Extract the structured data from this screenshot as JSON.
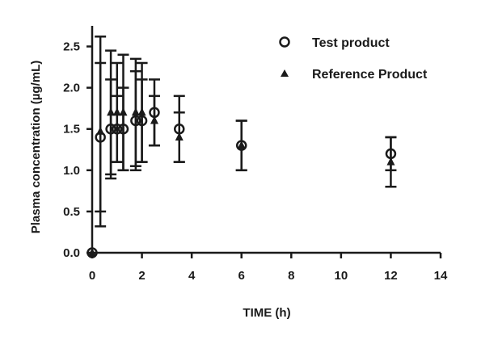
{
  "chart_data": {
    "type": "scatter",
    "xlabel": "TIME (h)",
    "ylabel": "Plasma concentration  (µg/mL)",
    "xlim": [
      0,
      14
    ],
    "ylim": [
      0,
      2.75
    ],
    "xticks": [
      "0",
      "2",
      "4",
      "6",
      "8",
      "10",
      "12",
      "14"
    ],
    "yticks": [
      "0.0",
      "0.5",
      "1.0",
      "1.5",
      "2.0",
      "2.5"
    ],
    "grid": false,
    "legend_position": "top-right",
    "series": [
      {
        "name": "Test product",
        "marker": "circle",
        "points": [
          {
            "x": 0,
            "y": 0,
            "err": 0
          },
          {
            "x": 0.33,
            "y": 1.4,
            "err": 0.9
          },
          {
            "x": 0.75,
            "y": 1.5,
            "err": 0.6
          },
          {
            "x": 1.0,
            "y": 1.5,
            "err": 0.4
          },
          {
            "x": 1.25,
            "y": 1.5,
            "err": 0.5
          },
          {
            "x": 1.75,
            "y": 1.6,
            "err": 0.6
          },
          {
            "x": 2.0,
            "y": 1.6,
            "err": 0.5
          },
          {
            "x": 2.5,
            "y": 1.7,
            "err": 0.4
          },
          {
            "x": 3.5,
            "y": 1.5,
            "err": 0.4
          },
          {
            "x": 6,
            "y": 1.3,
            "err": 0.3
          },
          {
            "x": 12,
            "y": 1.2,
            "err": 0.2
          }
        ]
      },
      {
        "name": "Reference Product",
        "marker": "triangle",
        "points": [
          {
            "x": 0,
            "y": 0,
            "err": 0
          },
          {
            "x": 0.33,
            "y": 1.47,
            "err": 1.15
          },
          {
            "x": 0.75,
            "y": 1.7,
            "err": 0.75
          },
          {
            "x": 1.0,
            "y": 1.7,
            "err": 0.6
          },
          {
            "x": 1.25,
            "y": 1.7,
            "err": 0.7
          },
          {
            "x": 1.75,
            "y": 1.7,
            "err": 0.65
          },
          {
            "x": 2.0,
            "y": 1.7,
            "err": 0.6
          },
          {
            "x": 2.5,
            "y": 1.6,
            "err": 0.3
          },
          {
            "x": 3.5,
            "y": 1.4,
            "err": 0.3
          },
          {
            "x": 6,
            "y": 1.3,
            "err": 0.3
          },
          {
            "x": 12,
            "y": 1.1,
            "err": 0.3
          }
        ]
      }
    ]
  }
}
